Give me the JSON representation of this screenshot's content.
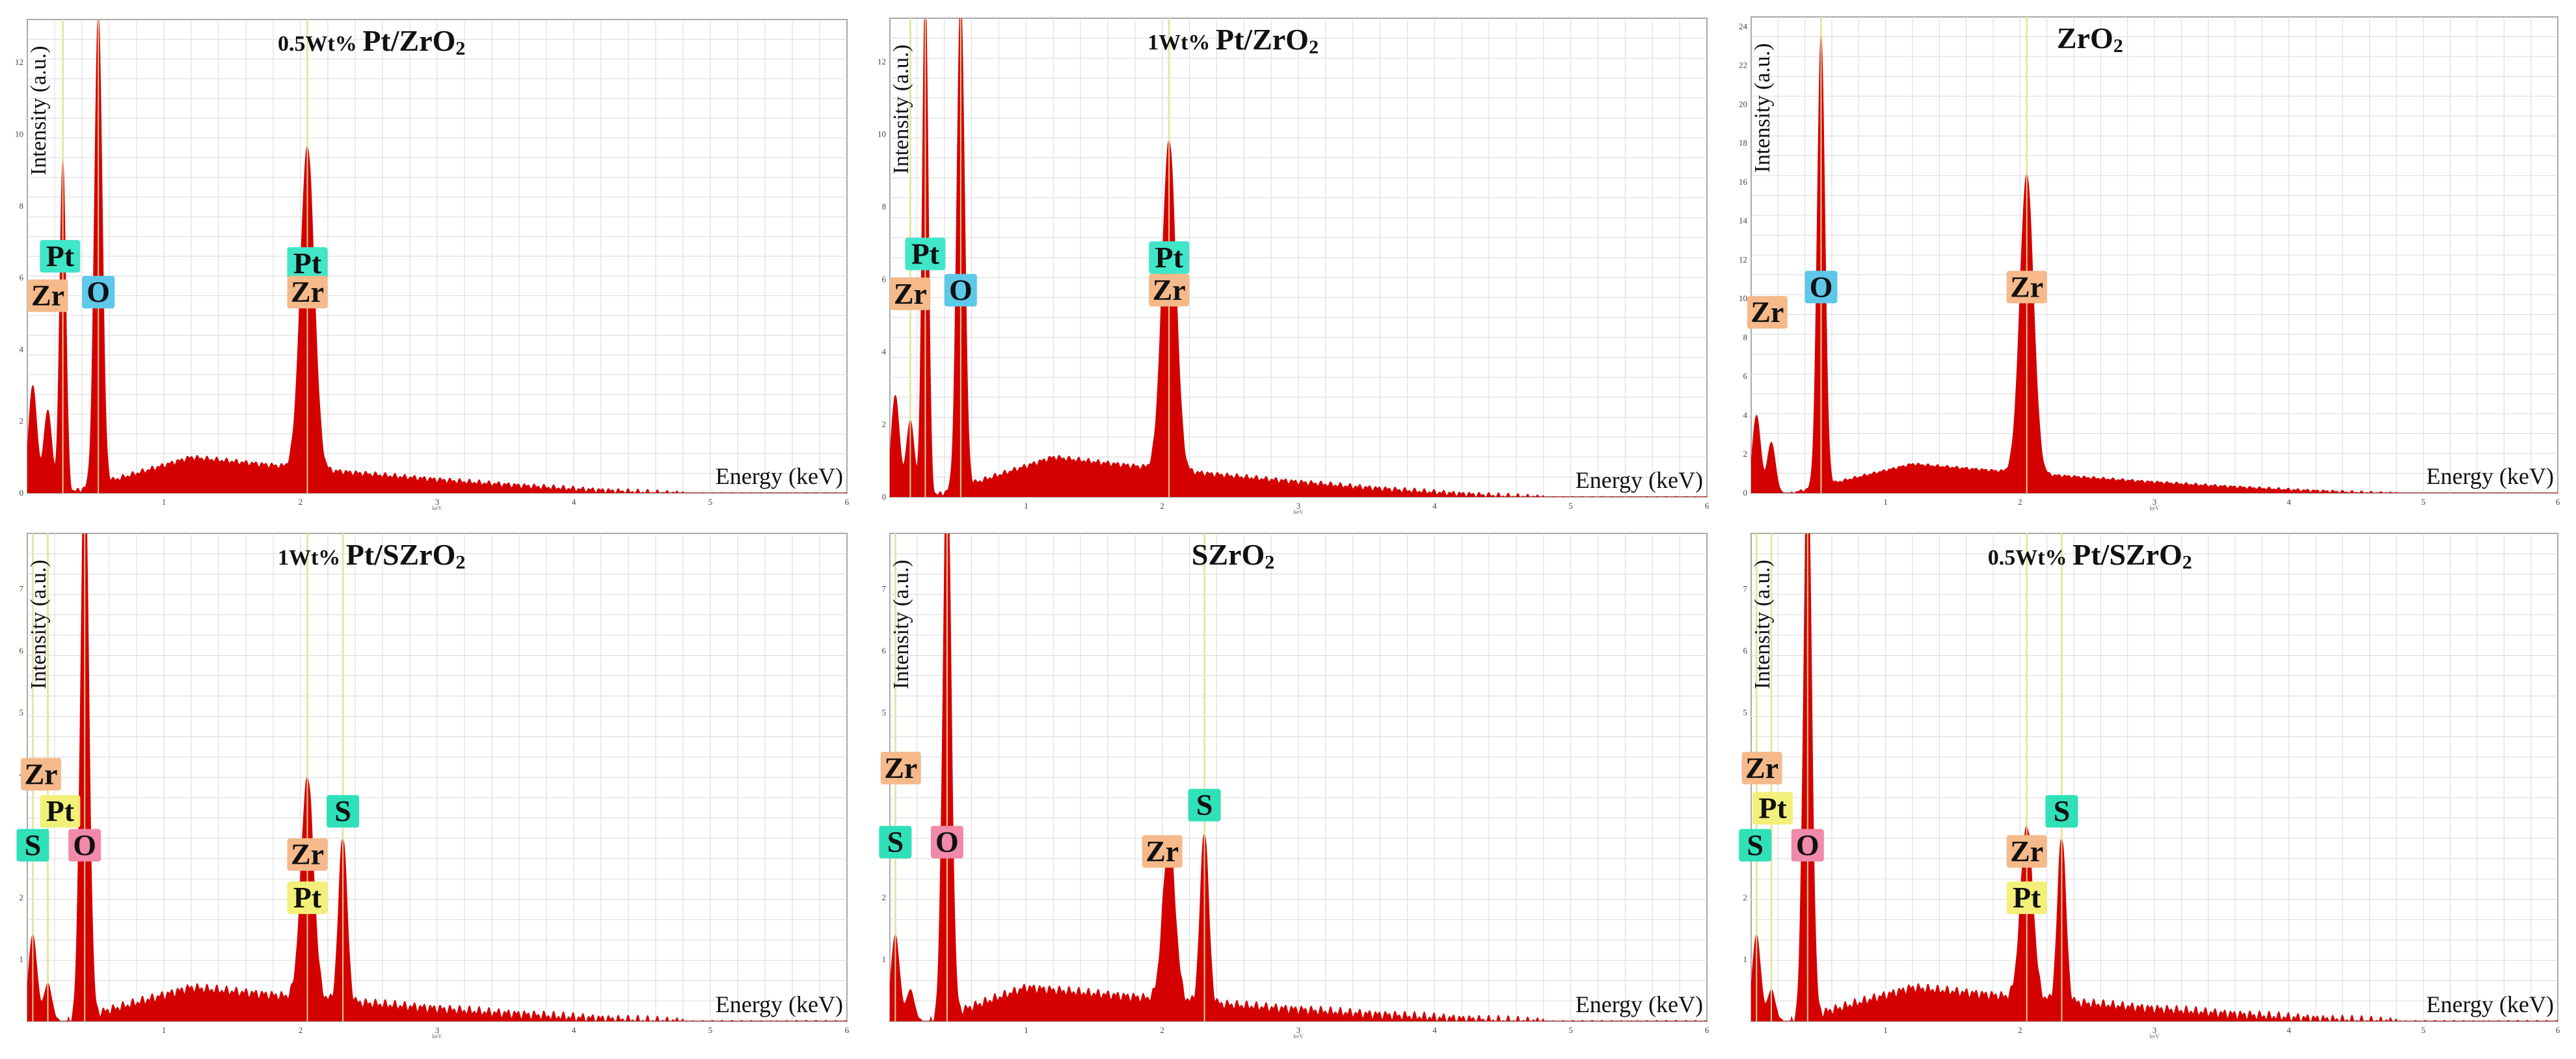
{
  "figure": {
    "common": {
      "xlabel": "Energy (keV)",
      "ylabel": "Intensity (a.u.)",
      "xunit": "keV",
      "xlim": [
        0,
        6
      ],
      "xticks": [
        1,
        2,
        3,
        4,
        5,
        6
      ],
      "colors": {
        "spectrum": "#d40000",
        "grid": "#d9d9d9",
        "axis": "#7a7a7a",
        "marker": "#e8e4a8"
      }
    },
    "label_colors": {
      "Pt": "#40e6c8",
      "Zr": "#f5b98a",
      "O": "#5ec8e8",
      "S": "#2fe0b8",
      "Pt_s": "#f3f07a",
      "O_s": "#f08aa8"
    }
  },
  "chart_data": [
    {
      "type": "line",
      "title_prefix": "0.5Wt%",
      "title_main": "Pt/ZrO",
      "title_sub": "2",
      "ylim": [
        0,
        13.2
      ],
      "yticks": [
        0,
        2,
        4,
        6,
        8,
        10,
        12
      ],
      "peaks": [
        {
          "e": 0.04,
          "h": 3.0,
          "w": 0.03
        },
        {
          "e": 0.15,
          "h": 2.3,
          "w": 0.03
        },
        {
          "e": 0.26,
          "h": 9.3,
          "w": 0.022
        },
        {
          "e": 0.52,
          "h": 13.2,
          "w": 0.028
        },
        {
          "e": 2.05,
          "h": 9.0,
          "w": 0.05
        }
      ],
      "background": {
        "start": 0.3,
        "peak_e": 1.2,
        "level": 1.0,
        "end": 4.8
      },
      "markers": [
        0.26,
        0.52,
        2.05
      ],
      "labels": [
        {
          "text": "Pt",
          "kind": "Pt",
          "e": 0.24,
          "y": 6.6
        },
        {
          "text": "Zr",
          "kind": "Zr",
          "e": 0.15,
          "y": 5.5
        },
        {
          "text": "O",
          "kind": "O",
          "e": 0.52,
          "y": 5.6
        },
        {
          "text": "Pt",
          "kind": "Pt",
          "e": 2.05,
          "y": 6.4
        },
        {
          "text": "Zr",
          "kind": "Zr",
          "e": 2.05,
          "y": 5.6
        }
      ]
    },
    {
      "type": "line",
      "title_prefix": "1Wt%",
      "title_main": "Pt/ZrO",
      "title_sub": "2",
      "ylim": [
        0,
        13.2
      ],
      "yticks": [
        0,
        2,
        4,
        6,
        8,
        10,
        12
      ],
      "peaks": [
        {
          "e": 0.04,
          "h": 2.8,
          "w": 0.03
        },
        {
          "e": 0.15,
          "h": 2.1,
          "w": 0.03
        },
        {
          "e": 0.26,
          "h": 14.0,
          "w": 0.022
        },
        {
          "e": 0.52,
          "h": 13.6,
          "w": 0.028
        },
        {
          "e": 2.05,
          "h": 9.1,
          "w": 0.05
        }
      ],
      "background": {
        "start": 0.3,
        "peak_e": 1.2,
        "level": 1.1,
        "end": 4.8
      },
      "markers": [
        0.15,
        0.26,
        0.52,
        2.05
      ],
      "labels": [
        {
          "text": "Pt",
          "kind": "Pt",
          "e": 0.26,
          "y": 6.7
        },
        {
          "text": "Zr",
          "kind": "Zr",
          "e": 0.15,
          "y": 5.6
        },
        {
          "text": "O",
          "kind": "O",
          "e": 0.52,
          "y": 5.7
        },
        {
          "text": "Pt",
          "kind": "Pt",
          "e": 2.05,
          "y": 6.6
        },
        {
          "text": "Zr",
          "kind": "Zr",
          "e": 2.05,
          "y": 5.7
        }
      ]
    },
    {
      "type": "line",
      "title_prefix": "",
      "title_main": "ZrO",
      "title_sub": "2",
      "ylim": [
        0,
        24.5
      ],
      "yticks": [
        0,
        2,
        4,
        6,
        8,
        10,
        12,
        14,
        16,
        18,
        20,
        22,
        24
      ],
      "peaks": [
        {
          "e": 0.04,
          "h": 4.0,
          "w": 0.03
        },
        {
          "e": 0.15,
          "h": 2.6,
          "w": 0.03
        },
        {
          "e": 0.52,
          "h": 23.2,
          "w": 0.028
        },
        {
          "e": 2.05,
          "h": 15.4,
          "w": 0.05
        }
      ],
      "background": {
        "start": 0.3,
        "peak_e": 1.2,
        "level": 1.5,
        "end": 4.8
      },
      "markers": [
        0.52,
        2.05
      ],
      "labels": [
        {
          "text": "Zr",
          "kind": "Zr",
          "e": 0.12,
          "y": 9.3
        },
        {
          "text": "O",
          "kind": "O",
          "e": 0.52,
          "y": 10.6
        },
        {
          "text": "Zr",
          "kind": "Zr",
          "e": 2.05,
          "y": 10.6
        }
      ]
    },
    {
      "type": "line",
      "title_prefix": "1Wt%",
      "title_main": "Pt/SZrO",
      "title_sub": "2",
      "ylim": [
        0,
        7.9
      ],
      "yticks": [
        1,
        2,
        3,
        4,
        5,
        6,
        7
      ],
      "peaks": [
        {
          "e": 0.04,
          "h": 1.4,
          "w": 0.03
        },
        {
          "e": 0.15,
          "h": 0.6,
          "w": 0.03
        },
        {
          "e": 0.42,
          "h": 9.0,
          "w": 0.03
        },
        {
          "e": 2.05,
          "h": 3.6,
          "w": 0.045
        },
        {
          "e": 2.31,
          "h": 2.7,
          "w": 0.03
        }
      ],
      "background": {
        "start": 0.3,
        "peak_e": 1.2,
        "level": 0.55,
        "end": 4.8
      },
      "markers": [
        0.04,
        0.15,
        0.42,
        2.05,
        2.31
      ],
      "labels": [
        {
          "text": "Zr",
          "kind": "Zr",
          "e": 0.1,
          "y": 4.0
        },
        {
          "text": "Pt",
          "kind": "Pt_s",
          "e": 0.24,
          "y": 3.4
        },
        {
          "text": "S",
          "kind": "S",
          "e": 0.04,
          "y": 2.85
        },
        {
          "text": "O",
          "kind": "O_s",
          "e": 0.42,
          "y": 2.85
        },
        {
          "text": "S",
          "kind": "S",
          "e": 2.31,
          "y": 3.4
        },
        {
          "text": "Zr",
          "kind": "Zr",
          "e": 2.05,
          "y": 2.7
        },
        {
          "text": "Pt",
          "kind": "Pt_s",
          "e": 2.05,
          "y": 2.0
        }
      ]
    },
    {
      "type": "line",
      "title_prefix": "",
      "title_main": "SZrO",
      "title_sub": "2",
      "ylim": [
        0,
        7.9
      ],
      "yticks": [
        1,
        2,
        3,
        4,
        5,
        6,
        7
      ],
      "peaks": [
        {
          "e": 0.04,
          "h": 1.4,
          "w": 0.03
        },
        {
          "e": 0.15,
          "h": 0.5,
          "w": 0.03
        },
        {
          "e": 0.42,
          "h": 9.0,
          "w": 0.03
        },
        {
          "e": 2.05,
          "h": 2.6,
          "w": 0.045
        },
        {
          "e": 2.31,
          "h": 2.8,
          "w": 0.03
        }
      ],
      "background": {
        "start": 0.3,
        "peak_e": 1.0,
        "level": 0.55,
        "end": 4.8
      },
      "markers": [
        0.04,
        0.42,
        2.31
      ],
      "labels": [
        {
          "text": "Zr",
          "kind": "Zr",
          "e": 0.08,
          "y": 4.1
        },
        {
          "text": "S",
          "kind": "S",
          "e": 0.04,
          "y": 2.9
        },
        {
          "text": "O",
          "kind": "O_s",
          "e": 0.42,
          "y": 2.9
        },
        {
          "text": "Zr",
          "kind": "Zr",
          "e": 2.0,
          "y": 2.75
        },
        {
          "text": "S",
          "kind": "S",
          "e": 2.31,
          "y": 3.5
        }
      ]
    },
    {
      "type": "line",
      "title_prefix": "0.5Wt%",
      "title_main": "Pt/SZrO",
      "title_sub": "2",
      "ylim": [
        0,
        7.9
      ],
      "yticks": [
        1,
        2,
        3,
        4,
        5,
        6,
        7
      ],
      "peaks": [
        {
          "e": 0.04,
          "h": 1.4,
          "w": 0.03
        },
        {
          "e": 0.15,
          "h": 0.5,
          "w": 0.03
        },
        {
          "e": 0.42,
          "h": 9.0,
          "w": 0.03
        },
        {
          "e": 2.05,
          "h": 2.8,
          "w": 0.045
        },
        {
          "e": 2.31,
          "h": 2.7,
          "w": 0.03
        }
      ],
      "background": {
        "start": 0.3,
        "peak_e": 1.2,
        "level": 0.55,
        "end": 4.8
      },
      "markers": [
        0.04,
        0.15,
        0.42,
        2.05,
        2.31
      ],
      "labels": [
        {
          "text": "Zr",
          "kind": "Zr",
          "e": 0.08,
          "y": 4.1
        },
        {
          "text": "Pt",
          "kind": "Pt_s",
          "e": 0.16,
          "y": 3.45
        },
        {
          "text": "S",
          "kind": "S",
          "e": 0.03,
          "y": 2.85
        },
        {
          "text": "O",
          "kind": "O_s",
          "e": 0.42,
          "y": 2.85
        },
        {
          "text": "S",
          "kind": "S",
          "e": 2.31,
          "y": 3.4
        },
        {
          "text": "Zr",
          "kind": "Zr",
          "e": 2.05,
          "y": 2.75
        },
        {
          "text": "Pt",
          "kind": "Pt_s",
          "e": 2.05,
          "y": 2.0
        }
      ]
    }
  ]
}
